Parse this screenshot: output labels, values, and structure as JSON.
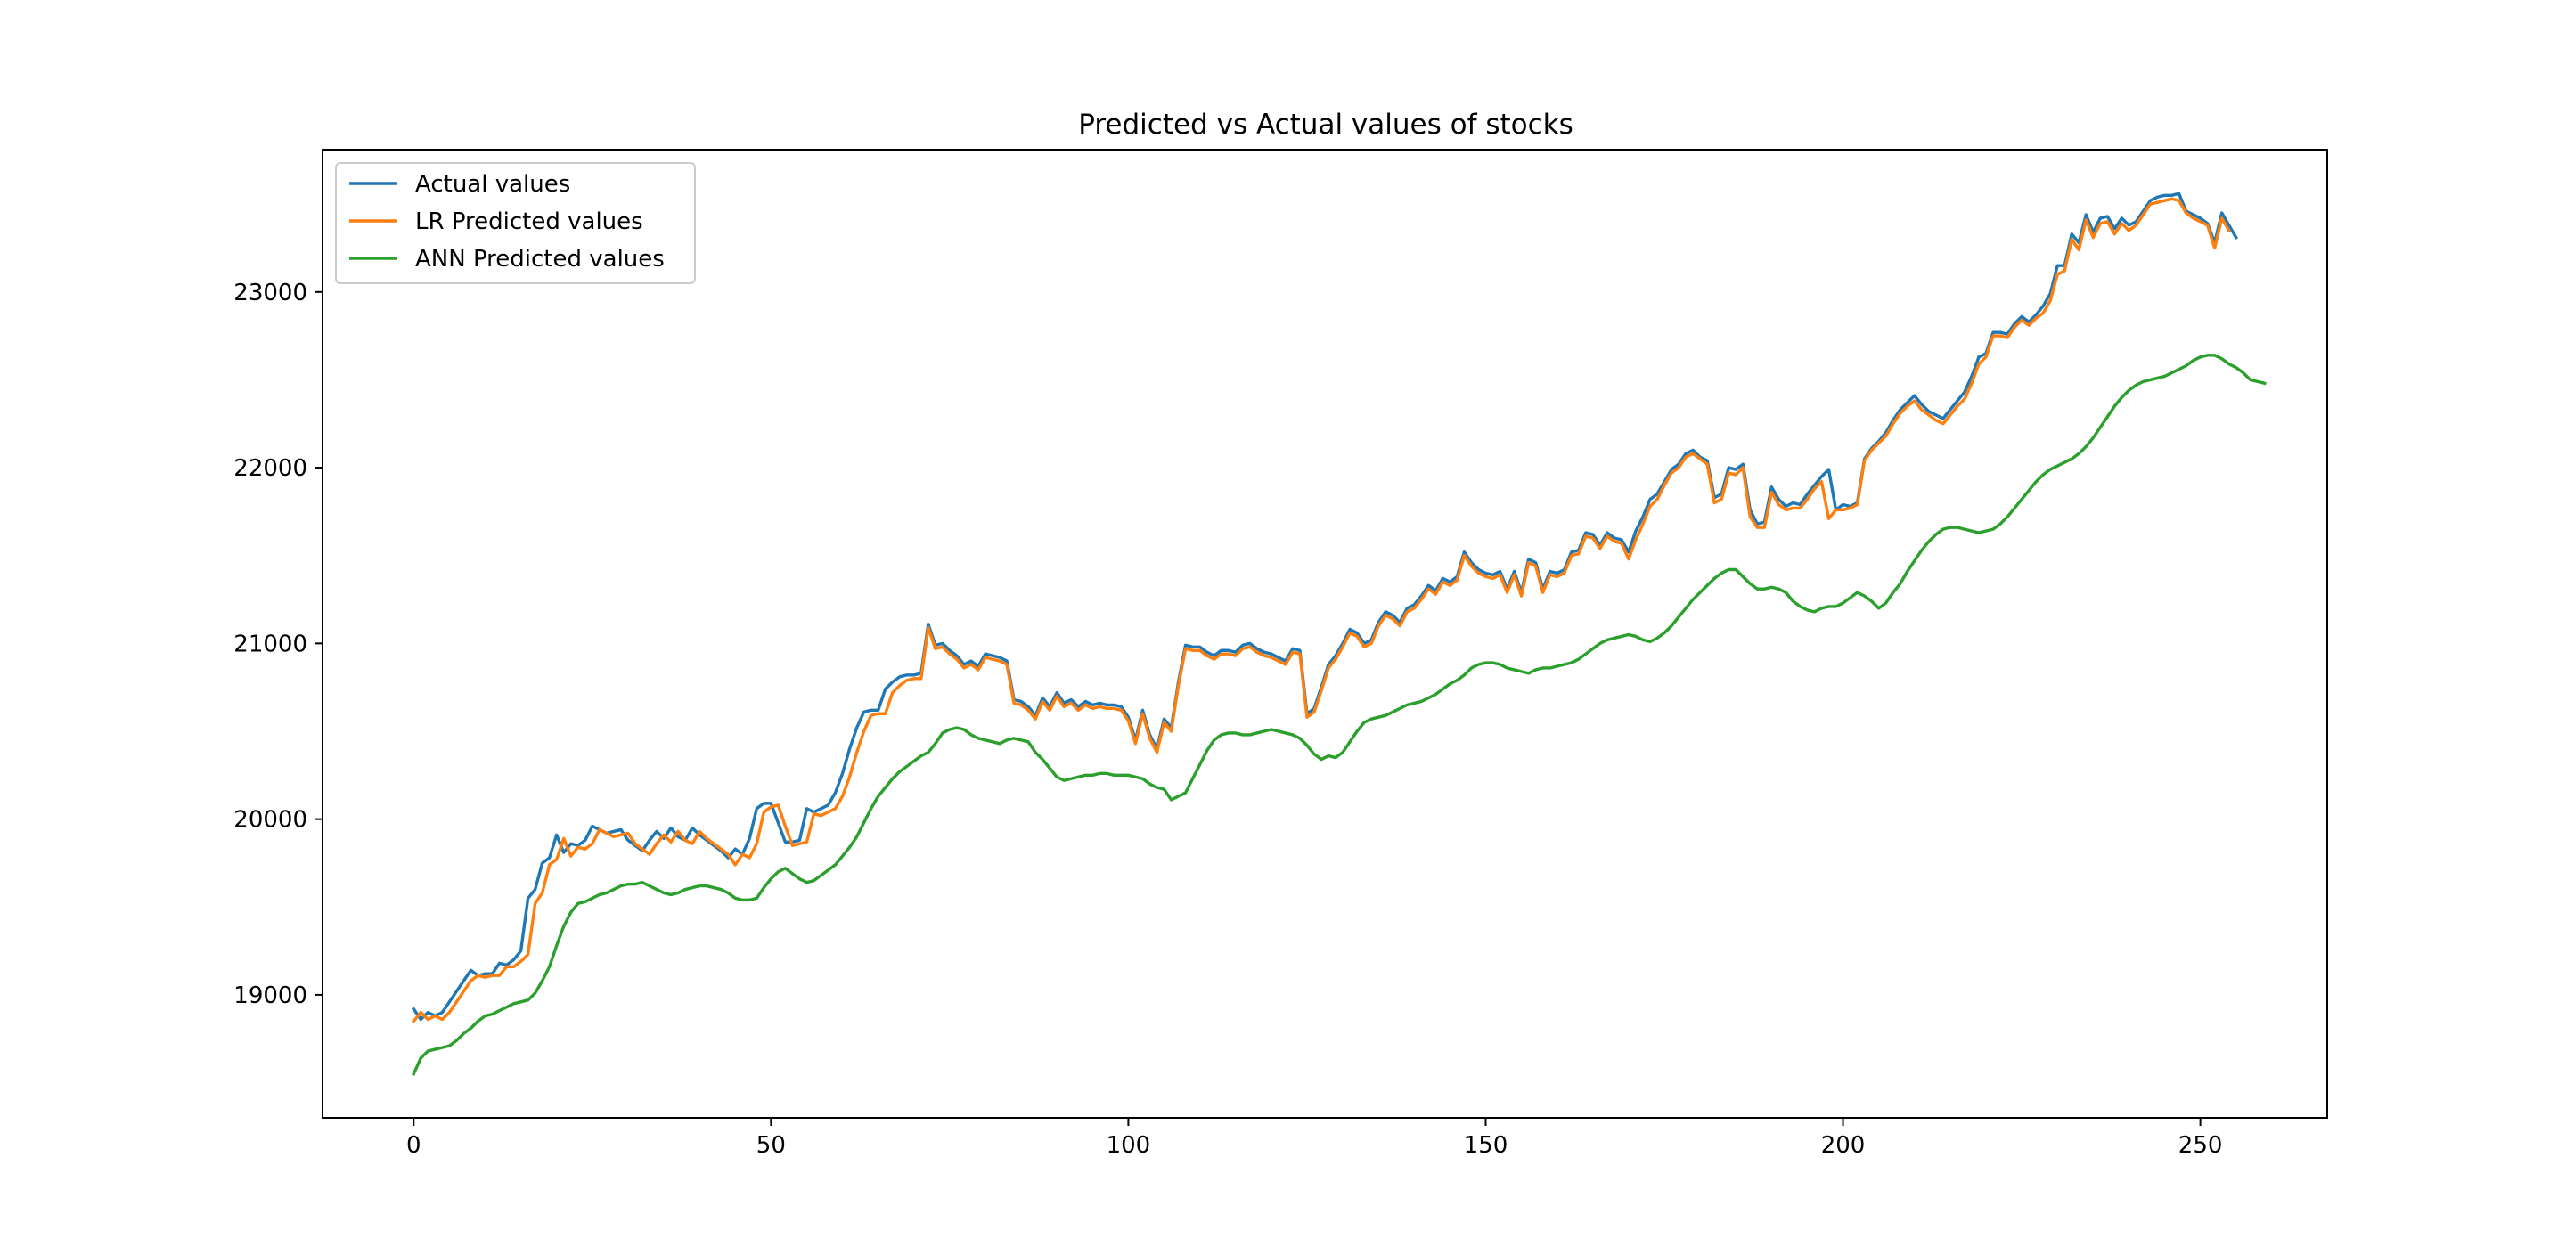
{
  "chart_data": {
    "type": "line",
    "title": "Predicted vs Actual values of stocks",
    "xlabel": "",
    "ylabel": "",
    "xlim": [
      -12.75,
      267.75
    ],
    "ylim": [
      18300,
      23810
    ],
    "xticks": [
      0,
      50,
      100,
      150,
      200,
      250
    ],
    "yticks": [
      19000,
      20000,
      21000,
      22000,
      23000
    ],
    "grid": false,
    "legend_position": "top-left",
    "x_start": 0,
    "series": [
      {
        "name": "Actual values",
        "color": "#1f77b4",
        "values": [
          18920,
          18860,
          18900,
          18880,
          18900,
          18960,
          19020,
          19080,
          19140,
          19110,
          19120,
          19120,
          19180,
          19170,
          19200,
          19250,
          19550,
          19600,
          19750,
          19780,
          19910,
          19810,
          19860,
          19850,
          19880,
          19960,
          19940,
          19920,
          19930,
          19940,
          19880,
          19850,
          19820,
          19880,
          19930,
          19890,
          19950,
          19900,
          19880,
          19950,
          19910,
          19880,
          19850,
          19820,
          19780,
          19830,
          19800,
          19890,
          20060,
          20090,
          20090,
          19980,
          19870,
          19870,
          19880,
          20060,
          20040,
          20060,
          20080,
          20150,
          20260,
          20400,
          20520,
          20610,
          20620,
          20620,
          20740,
          20780,
          20810,
          20820,
          20820,
          20830,
          21110,
          20990,
          21000,
          20960,
          20930,
          20880,
          20900,
          20870,
          20940,
          20930,
          20920,
          20900,
          20680,
          20670,
          20640,
          20590,
          20690,
          20640,
          20720,
          20660,
          20680,
          20640,
          20670,
          20650,
          20660,
          20650,
          20650,
          20640,
          20580,
          20450,
          20620,
          20480,
          20400,
          20570,
          20520,
          20780,
          20990,
          20980,
          20980,
          20950,
          20930,
          20960,
          20960,
          20950,
          20990,
          21000,
          20970,
          20950,
          20940,
          20920,
          20900,
          20970,
          20960,
          20600,
          20630,
          20750,
          20880,
          20930,
          21000,
          21080,
          21060,
          21000,
          21020,
          21120,
          21180,
          21160,
          21120,
          21200,
          21220,
          21270,
          21330,
          21300,
          21370,
          21350,
          21380,
          21520,
          21460,
          21420,
          21400,
          21390,
          21410,
          21310,
          21410,
          21290,
          21480,
          21460,
          21310,
          21410,
          21400,
          21420,
          21520,
          21530,
          21630,
          21620,
          21560,
          21630,
          21600,
          21590,
          21520,
          21640,
          21720,
          21820,
          21850,
          21920,
          21990,
          22020,
          22080,
          22100,
          22060,
          22040,
          21830,
          21850,
          22000,
          21990,
          22020,
          21760,
          21680,
          21690,
          21890,
          21820,
          21780,
          21800,
          21790,
          21850,
          21900,
          21950,
          21990,
          21760,
          21790,
          21780,
          21800,
          22050,
          22110,
          22150,
          22200,
          22270,
          22330,
          22370,
          22410,
          22360,
          22320,
          22300,
          22280,
          22330,
          22380,
          22430,
          22520,
          22630,
          22650,
          22770,
          22770,
          22760,
          22820,
          22860,
          22830,
          22870,
          22920,
          22990,
          23150,
          23150,
          23330,
          23280,
          23440,
          23340,
          23420,
          23430,
          23360,
          23420,
          23380,
          23400,
          23460,
          23520,
          23540,
          23550,
          23550,
          23560,
          23460,
          23440,
          23420,
          23390,
          23280,
          23450,
          23380,
          23310
        ]
      },
      {
        "name": "LR Predicted values",
        "color": "#ff7f0e",
        "values": [
          18850,
          18900,
          18860,
          18880,
          18860,
          18900,
          18960,
          19020,
          19080,
          19110,
          19100,
          19110,
          19110,
          19160,
          19160,
          19190,
          19230,
          19520,
          19580,
          19740,
          19770,
          19890,
          19790,
          19840,
          19830,
          19860,
          19940,
          19920,
          19900,
          19910,
          19920,
          19860,
          19830,
          19800,
          19860,
          19910,
          19870,
          19930,
          19880,
          19860,
          19930,
          19890,
          19860,
          19830,
          19800,
          19740,
          19800,
          19780,
          19860,
          20040,
          20070,
          20080,
          19960,
          19850,
          19860,
          19870,
          20030,
          20020,
          20040,
          20060,
          20130,
          20240,
          20380,
          20500,
          20590,
          20600,
          20600,
          20720,
          20760,
          20790,
          20800,
          20800,
          21090,
          20970,
          20980,
          20940,
          20910,
          20860,
          20880,
          20850,
          20920,
          20910,
          20900,
          20880,
          20660,
          20650,
          20620,
          20570,
          20670,
          20620,
          20700,
          20640,
          20660,
          20620,
          20650,
          20630,
          20640,
          20630,
          20630,
          20620,
          20560,
          20430,
          20600,
          20460,
          20380,
          20550,
          20500,
          20760,
          20970,
          20960,
          20960,
          20930,
          20910,
          20940,
          20940,
          20930,
          20970,
          20980,
          20950,
          20930,
          20920,
          20900,
          20880,
          20950,
          20940,
          20580,
          20610,
          20730,
          20860,
          20910,
          20980,
          21060,
          21040,
          20980,
          21000,
          21100,
          21160,
          21140,
          21100,
          21180,
          21200,
          21250,
          21310,
          21280,
          21350,
          21330,
          21360,
          21500,
          21440,
          21400,
          21380,
          21370,
          21390,
          21290,
          21390,
          21270,
          21460,
          21440,
          21290,
          21390,
          21380,
          21400,
          21500,
          21510,
          21610,
          21600,
          21540,
          21610,
          21580,
          21570,
          21480,
          21590,
          21680,
          21780,
          21820,
          21900,
          21970,
          22000,
          22060,
          22080,
          22050,
          22020,
          21800,
          21820,
          21970,
          21960,
          22000,
          21720,
          21660,
          21660,
          21860,
          21790,
          21760,
          21770,
          21770,
          21820,
          21880,
          21920,
          21710,
          21760,
          21760,
          21770,
          21790,
          22040,
          22100,
          22140,
          22180,
          22250,
          22310,
          22350,
          22380,
          22330,
          22300,
          22270,
          22250,
          22300,
          22350,
          22390,
          22480,
          22590,
          22630,
          22750,
          22750,
          22740,
          22800,
          22840,
          22810,
          22850,
          22880,
          22950,
          23100,
          23120,
          23300,
          23240,
          23410,
          23310,
          23390,
          23400,
          23330,
          23390,
          23350,
          23380,
          23440,
          23500,
          23510,
          23520,
          23530,
          23520,
          23450,
          23420,
          23400,
          23380,
          23250,
          23420,
          23350
        ]
      },
      {
        "name": "ANN Predicted values",
        "color": "#2ca02c",
        "values": [
          18550,
          18640,
          18680,
          18690,
          18700,
          18710,
          18740,
          18780,
          18810,
          18850,
          18880,
          18890,
          18910,
          18930,
          18950,
          18960,
          18970,
          19010,
          19080,
          19160,
          19280,
          19390,
          19470,
          19520,
          19530,
          19550,
          19570,
          19580,
          19600,
          19620,
          19630,
          19630,
          19640,
          19620,
          19600,
          19580,
          19570,
          19580,
          19600,
          19610,
          19620,
          19620,
          19610,
          19600,
          19580,
          19550,
          19540,
          19540,
          19550,
          19610,
          19660,
          19700,
          19720,
          19690,
          19660,
          19640,
          19650,
          19680,
          19710,
          19740,
          19790,
          19840,
          19900,
          19980,
          20060,
          20130,
          20180,
          20230,
          20270,
          20300,
          20330,
          20360,
          20380,
          20430,
          20490,
          20510,
          20520,
          20510,
          20480,
          20460,
          20450,
          20440,
          20430,
          20450,
          20460,
          20450,
          20440,
          20380,
          20340,
          20290,
          20240,
          20220,
          20230,
          20240,
          20250,
          20250,
          20260,
          20260,
          20250,
          20250,
          20250,
          20240,
          20230,
          20200,
          20180,
          20170,
          20110,
          20130,
          20150,
          20230,
          20310,
          20390,
          20450,
          20480,
          20490,
          20490,
          20480,
          20480,
          20490,
          20500,
          20510,
          20500,
          20490,
          20480,
          20460,
          20420,
          20370,
          20340,
          20360,
          20350,
          20380,
          20440,
          20500,
          20550,
          20570,
          20580,
          20590,
          20610,
          20630,
          20650,
          20660,
          20670,
          20690,
          20710,
          20740,
          20770,
          20790,
          20820,
          20860,
          20880,
          20890,
          20890,
          20880,
          20860,
          20850,
          20840,
          20830,
          20850,
          20860,
          20860,
          20870,
          20880,
          20890,
          20910,
          20940,
          20970,
          21000,
          21020,
          21030,
          21040,
          21050,
          21040,
          21020,
          21010,
          21030,
          21060,
          21100,
          21150,
          21200,
          21250,
          21290,
          21330,
          21370,
          21400,
          21420,
          21420,
          21380,
          21340,
          21310,
          21310,
          21320,
          21310,
          21290,
          21240,
          21210,
          21190,
          21180,
          21200,
          21210,
          21210,
          21230,
          21260,
          21290,
          21270,
          21240,
          21200,
          21230,
          21290,
          21340,
          21410,
          21470,
          21530,
          21580,
          21620,
          21650,
          21660,
          21660,
          21650,
          21640,
          21630,
          21640,
          21650,
          21680,
          21720,
          21770,
          21820,
          21870,
          21920,
          21960,
          21990,
          22010,
          22030,
          22050,
          22080,
          22120,
          22170,
          22230,
          22290,
          22350,
          22400,
          22440,
          22470,
          22490,
          22500,
          22510,
          22520,
          22540,
          22560,
          22580,
          22610,
          22630,
          22640,
          22640,
          22620,
          22590,
          22570,
          22540,
          22500,
          22490,
          22480
        ]
      }
    ]
  }
}
